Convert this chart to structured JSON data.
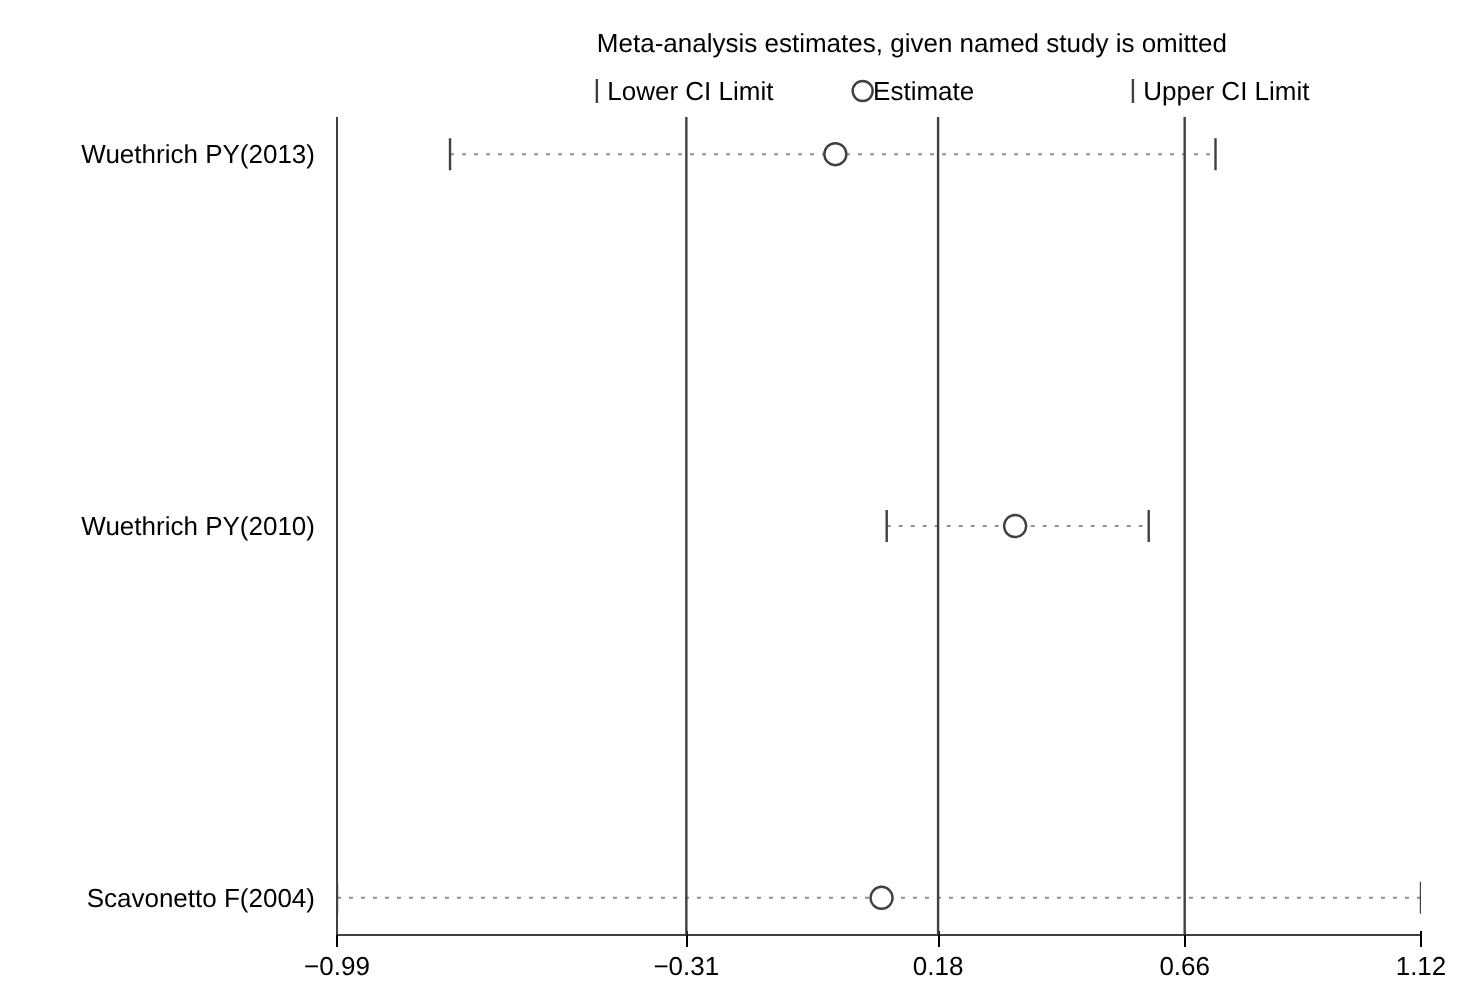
{
  "chart_data": {
    "type": "scatter",
    "orientation": "horizontal",
    "title": "Meta-analysis estimates, given named study is omitted",
    "categories": [
      "Wuethrich PY(2013)",
      "Wuethrich PY(2010)",
      "Scavonetto F(2004)"
    ],
    "series": [
      {
        "name": "Estimate",
        "color": "#404040",
        "marker": "circle",
        "values": [
          -0.02,
          0.33,
          0.07
        ],
        "errors": [
          [
            -0.77,
            0.72
          ],
          [
            0.08,
            0.59
          ],
          [
            -0.99,
            1.12
          ]
        ]
      }
    ],
    "annotations": [
      "Lower CI Limit",
      "Upper CI Limit"
    ],
    "line_style": "dotted",
    "xlim": [
      -0.99,
      1.12
    ],
    "xticks": [
      -0.99,
      -0.31,
      0.18,
      0.66,
      1.12
    ],
    "ref_lines": [
      {
        "axis": "x",
        "value": -0.31,
        "color": "#404040"
      },
      {
        "axis": "x",
        "value": 0.18,
        "color": "#404040"
      },
      {
        "axis": "x",
        "value": 0.66,
        "color": "#404040"
      }
    ],
    "legend": "top"
  }
}
